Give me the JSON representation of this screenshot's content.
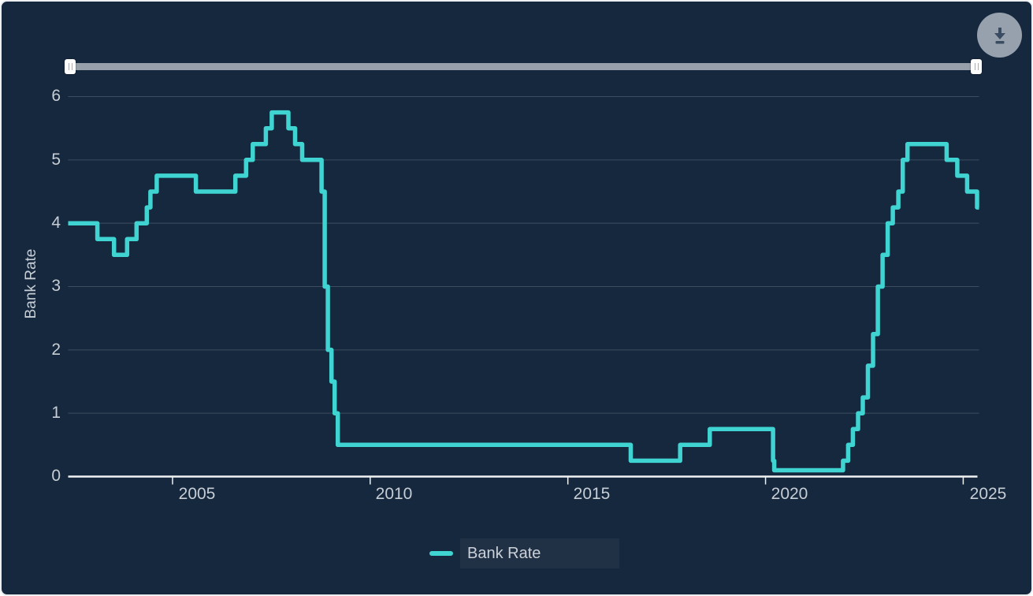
{
  "page": {
    "background_color": "#16283E",
    "border_color": "#ECEEF0"
  },
  "toolbar": {
    "download_button": {
      "icon": "download-icon",
      "background_color": "#97A1AD",
      "icon_color": "#3A4C62"
    }
  },
  "range_slider": {
    "track_color": "#98A1AB",
    "handle_color": "#FDFDFD",
    "selection": "full-range"
  },
  "chart_data": {
    "type": "line",
    "step": "after",
    "title": "",
    "xlabel": "",
    "ylabel": "Bank Rate",
    "legend": [
      "Bank Rate"
    ],
    "legend_position": "bottom-center",
    "grid": "horizontal-only",
    "line_color": "#3FD4D1",
    "grid_color": "#3C4D60",
    "axis_color": "#F0F2F4",
    "label_color": "#C6CDD5",
    "xlim": [
      2002.36,
      2025.4
    ],
    "ylim": [
      0,
      6
    ],
    "yticks": [
      0,
      1,
      2,
      3,
      4,
      5,
      6
    ],
    "ytick_labels": [
      "0",
      "1",
      "2",
      "3",
      "4",
      "5",
      "6"
    ],
    "xticks": [
      2005,
      2010,
      2015,
      2020,
      2025
    ],
    "xtick_labels": [
      "2005",
      "2010",
      "2015",
      "2020",
      "2025"
    ],
    "series": [
      {
        "name": "Bank Rate",
        "points": [
          [
            2002.36,
            4.0
          ],
          [
            2003.1,
            3.75
          ],
          [
            2003.52,
            3.5
          ],
          [
            2003.85,
            3.75
          ],
          [
            2004.09,
            4.0
          ],
          [
            2004.35,
            4.25
          ],
          [
            2004.44,
            4.5
          ],
          [
            2004.6,
            4.75
          ],
          [
            2005.59,
            4.5
          ],
          [
            2006.59,
            4.75
          ],
          [
            2006.86,
            5.0
          ],
          [
            2007.03,
            5.25
          ],
          [
            2007.36,
            5.5
          ],
          [
            2007.51,
            5.75
          ],
          [
            2007.93,
            5.5
          ],
          [
            2008.1,
            5.25
          ],
          [
            2008.28,
            5.0
          ],
          [
            2008.77,
            4.5
          ],
          [
            2008.85,
            3.0
          ],
          [
            2008.93,
            2.0
          ],
          [
            2009.02,
            1.5
          ],
          [
            2009.1,
            1.0
          ],
          [
            2009.18,
            0.5
          ],
          [
            2016.59,
            0.25
          ],
          [
            2017.84,
            0.5
          ],
          [
            2018.59,
            0.75
          ],
          [
            2020.19,
            0.25
          ],
          [
            2020.22,
            0.1
          ],
          [
            2021.96,
            0.25
          ],
          [
            2022.09,
            0.5
          ],
          [
            2022.21,
            0.75
          ],
          [
            2022.34,
            1.0
          ],
          [
            2022.46,
            1.25
          ],
          [
            2022.59,
            1.75
          ],
          [
            2022.72,
            2.25
          ],
          [
            2022.84,
            3.0
          ],
          [
            2022.96,
            3.5
          ],
          [
            2023.09,
            4.0
          ],
          [
            2023.22,
            4.25
          ],
          [
            2023.36,
            4.5
          ],
          [
            2023.47,
            5.0
          ],
          [
            2023.59,
            5.25
          ],
          [
            2024.58,
            5.0
          ],
          [
            2024.85,
            4.75
          ],
          [
            2025.1,
            4.5
          ],
          [
            2025.35,
            4.25
          ]
        ]
      }
    ]
  }
}
